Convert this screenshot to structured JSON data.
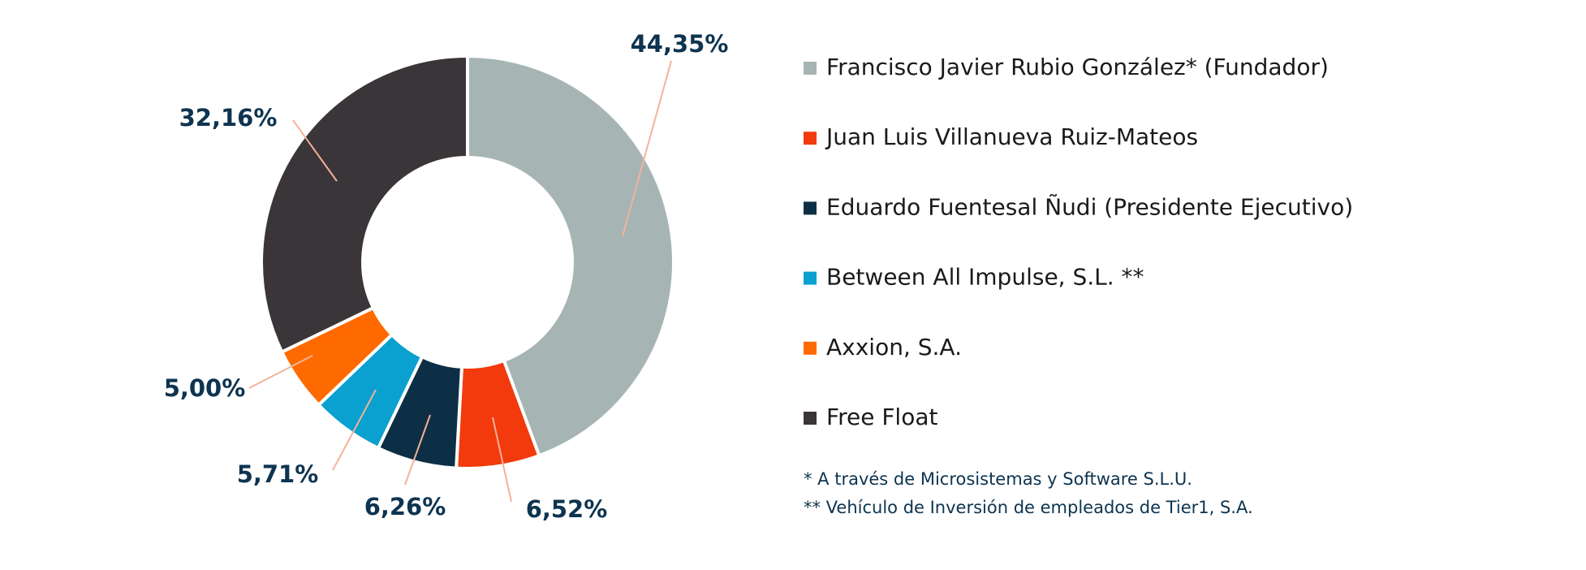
{
  "chart_data": {
    "type": "donut",
    "categories": [
      "Francisco Javier Rubio González* (Fundador)",
      "Juan Luis Villanueva Ruiz-Mateos",
      "Eduardo Fuentesal Ñudi (Presidente Ejecutivo)",
      "Between All Impulse, S.L. **",
      "Axxion, S.A.",
      "Free Float"
    ],
    "values": [
      44.35,
      6.52,
      6.26,
      5.71,
      5.0,
      32.16
    ],
    "value_labels": [
      "44,35%",
      "6,52%",
      "6,26%",
      "5,71%",
      "5,00%",
      "32,16%"
    ],
    "colors": [
      "#a6b5b4",
      "#f23a0c",
      "#0d2f45",
      "#0aa0cf",
      "#ff6a00",
      "#3a3538"
    ],
    "notes": [
      "* A través de Microsistemas y Software S.L.U.",
      "** Vehículo de Inversión de empleados de Tier1, S.A."
    ]
  }
}
